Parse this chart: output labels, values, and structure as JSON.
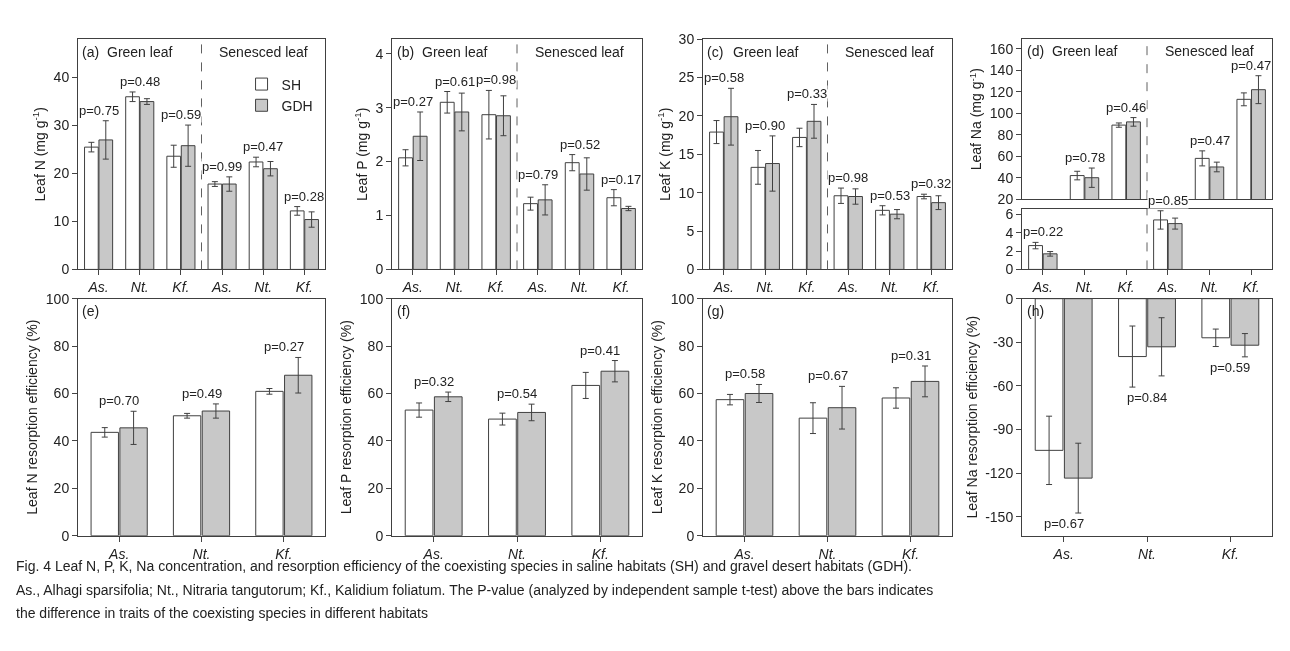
{
  "chart_data": [
    {
      "type": "bar",
      "ylabel": "Leaf N (mg g$^{-1}$)",
      "categories": [
        "As.",
        "Nt.",
        "Kf.",
        "As.",
        "Nt.",
        "Kf."
      ],
      "ylim": [
        0,
        48
      ],
      "yticks": [
        0,
        10,
        20,
        30,
        40
      ],
      "legend": "top right",
      "series": [
        {
          "name": "SH",
          "color": "#ffffff",
          "values": [
            25.5,
            36,
            23.6,
            17.8,
            22.4,
            12.2
          ],
          "errors": [
            1,
            1,
            2.3,
            0.5,
            1,
            0.9
          ]
        },
        {
          "name": "GDH",
          "color": "#c8c8c8",
          "values": [
            27,
            35,
            25.8,
            17.8,
            21,
            10.4
          ],
          "errors": [
            4,
            0.6,
            4.3,
            1.5,
            1.5,
            1.6
          ]
        }
      ],
      "annotations": [
        "(a)",
        "Green leaf",
        "Senesced leaf",
        "p=0.75",
        "p=0.48",
        "p=0.59",
        "p=0.99",
        "p=0.47",
        "p=0.28"
      ]
    },
    {
      "type": "bar",
      "ylabel": "Leaf P (mg g$^{-1}$)",
      "categories": [
        "As.",
        "Nt.",
        "Kf.",
        "As.",
        "Nt.",
        "Kf."
      ],
      "ylim": [
        0,
        4.27
      ],
      "yticks": [
        0,
        1,
        2,
        3,
        4
      ],
      "series": [
        {
          "color": "#ffffff",
          "values": [
            2.07,
            3.1,
            2.87,
            1.22,
            1.98,
            1.33
          ],
          "errors": [
            0.15,
            0.2,
            0.45,
            0.12,
            0.15,
            0.15
          ]
        },
        {
          "color": "#c8c8c8",
          "values": [
            2.47,
            2.92,
            2.85,
            1.29,
            1.77,
            1.13
          ],
          "errors": [
            0.45,
            0.35,
            0.37,
            0.28,
            0.3,
            0.04
          ]
        }
      ],
      "annotations": [
        "(b)",
        "Green leaf",
        "Senesced leaf",
        "p=0.27",
        "p=0.61",
        "p=0.98",
        "p=0.79",
        "p=0.52",
        "p=0.17"
      ]
    },
    {
      "type": "bar",
      "ylabel": "Leaf K (mg g$^{-1}$)",
      "categories": [
        "As.",
        "Nt.",
        "Kf.",
        "As.",
        "Nt.",
        "Kf."
      ],
      "ylim": [
        0,
        30
      ],
      "yticks": [
        0,
        5,
        10,
        15,
        20,
        25,
        30
      ],
      "series": [
        {
          "color": "#ffffff",
          "values": [
            17.9,
            13.3,
            17.2,
            9.6,
            7.7,
            9.5
          ],
          "errors": [
            1.5,
            2.2,
            1.2,
            1,
            0.6,
            0.3
          ]
        },
        {
          "color": "#c8c8c8",
          "values": [
            19.9,
            13.8,
            19.3,
            9.5,
            7.2,
            8.7
          ],
          "errors": [
            3.7,
            3.6,
            2.2,
            1,
            0.6,
            0.9
          ]
        }
      ],
      "annotations": [
        "(c)",
        "Green leaf",
        "Senesced leaf",
        "p=0.58",
        "p=0.90",
        "p=0.33",
        "p=0.98",
        "p=0.53",
        "p=0.32"
      ]
    },
    {
      "type": "bar",
      "ylabel": "Leaf Na (mg g$^{-1}$)",
      "categories": [
        null,
        null,
        null,
        null,
        null,
        null
      ],
      "ylim": [
        20,
        169
      ],
      "yticks": [
        20,
        40,
        60,
        80,
        100,
        120,
        140,
        160
      ],
      "tick_labels": "y",
      "series": [
        {
          "color": "#ffffff",
          "values": [
            null,
            42,
            89,
            null,
            58,
            113
          ],
          "errors": [
            null,
            4,
            2,
            null,
            7,
            6
          ]
        },
        {
          "color": "#c8c8c8",
          "values": [
            null,
            40,
            92,
            null,
            50,
            122
          ],
          "errors": [
            null,
            9,
            4,
            null,
            4.5,
            13
          ]
        }
      ],
      "annotations": [
        "(d)",
        "Green leaf",
        "Senesced leaf",
        "p=0.78",
        "p=0.46",
        "p=0.47",
        "p=0.47"
      ]
    },
    {
      "type": "bar",
      "categories": [
        "As.",
        "Nt.",
        "Kf.",
        "As.",
        "Nt.",
        "Kf."
      ],
      "ylim": [
        0,
        6.6
      ],
      "yticks": [
        0,
        2,
        4,
        6
      ],
      "series": [
        {
          "color": "#ffffff",
          "values": [
            2.6,
            null,
            null,
            5.4,
            null,
            null
          ],
          "errors": [
            0.35,
            null,
            null,
            1,
            null,
            null
          ]
        },
        {
          "color": "#c8c8c8",
          "values": [
            1.7,
            null,
            null,
            5.0,
            null,
            null
          ],
          "errors": [
            0.25,
            null,
            null,
            0.6,
            null,
            null
          ]
        }
      ],
      "annotations": [
        "p=0.22",
        "p=0.85"
      ]
    },
    {
      "type": "bar",
      "ylabel": "Leaf N resorption efficiency (%)",
      "categories": [
        "As.",
        "Nt.",
        "Kf."
      ],
      "ylim": [
        0,
        100
      ],
      "yticks": [
        0,
        20,
        40,
        60,
        80,
        100
      ],
      "series": [
        {
          "color": "#ffffff",
          "values": [
            43.6,
            50.6,
            60.9
          ],
          "errors": [
            2,
            1,
            1.2
          ]
        },
        {
          "color": "#c8c8c8",
          "values": [
            45.5,
            52.6,
            67.7
          ],
          "errors": [
            7,
            3,
            7.5
          ]
        }
      ],
      "annotations": [
        "(e)",
        "p=0.70",
        "p=0.49",
        "p=0.27"
      ]
    },
    {
      "type": "bar",
      "ylabel": "Leaf P resorption efficiency (%)",
      "categories": [
        "As.",
        "Nt.",
        "Kf."
      ],
      "ylim": [
        0,
        100
      ],
      "yticks": [
        0,
        20,
        40,
        60,
        80,
        100
      ],
      "series": [
        {
          "color": "#ffffff",
          "values": [
            53,
            49.2,
            63.4
          ],
          "errors": [
            3,
            2.5,
            5.5
          ]
        },
        {
          "color": "#c8c8c8",
          "values": [
            58.6,
            52,
            69.4
          ],
          "errors": [
            2,
            3.5,
            4.5
          ]
        }
      ],
      "annotations": [
        "(f)",
        "p=0.32",
        "p=0.54",
        "p=0.41"
      ]
    },
    {
      "type": "bar",
      "ylabel": "Leaf K resorption efficiency (%)",
      "categories": [
        "As.",
        "Nt.",
        "Kf."
      ],
      "ylim": [
        0,
        100
      ],
      "yticks": [
        0,
        20,
        40,
        60,
        80,
        100
      ],
      "series": [
        {
          "color": "#ffffff",
          "values": [
            57.4,
            49.6,
            58.1
          ],
          "errors": [
            2.2,
            6.5,
            4.3
          ]
        },
        {
          "color": "#c8c8c8",
          "values": [
            60,
            54,
            65.1
          ],
          "errors": [
            3.8,
            9,
            6.5
          ]
        }
      ],
      "annotations": [
        "(g)",
        "p=0.58",
        "p=0.67",
        "p=0.31"
      ]
    },
    {
      "type": "bar",
      "ylabel": "Leaf Na resorption efficiency (%)",
      "categories": [
        "As.",
        "Nt.",
        "Kf."
      ],
      "ylim": [
        -163,
        0
      ],
      "yticks": [
        -150,
        -120,
        -90,
        -60,
        -30,
        0
      ],
      "series": [
        {
          "color": "#ffffff",
          "values": [
            -104.3,
            -39.8,
            -26.9
          ],
          "errors": [
            23.5,
            21,
            6
          ]
        },
        {
          "color": "#c8c8c8",
          "values": [
            -123.4,
            -33.1,
            -32
          ],
          "errors": [
            24,
            20,
            8
          ]
        }
      ],
      "annotations": [
        "(h)",
        "p=0.67",
        "p=0.84",
        "p=0.59"
      ]
    },
    {
      "type": "other",
      "annotations": [
        "Fig. 4 Leaf N, P, K, Na concentration, and resorption efficiency of the coexisting species in saline habitats (SH) and gravel desert habitats (GDH).",
        "As., Alhagi sparsifolia; Nt., Nitraria tangutorum; Kf., Kalidium foliatum. The P-value (analyzed by independent sample t-test) above the bars indicates",
        "the difference in traits of the coexisting species in different habitats"
      ]
    }
  ]
}
